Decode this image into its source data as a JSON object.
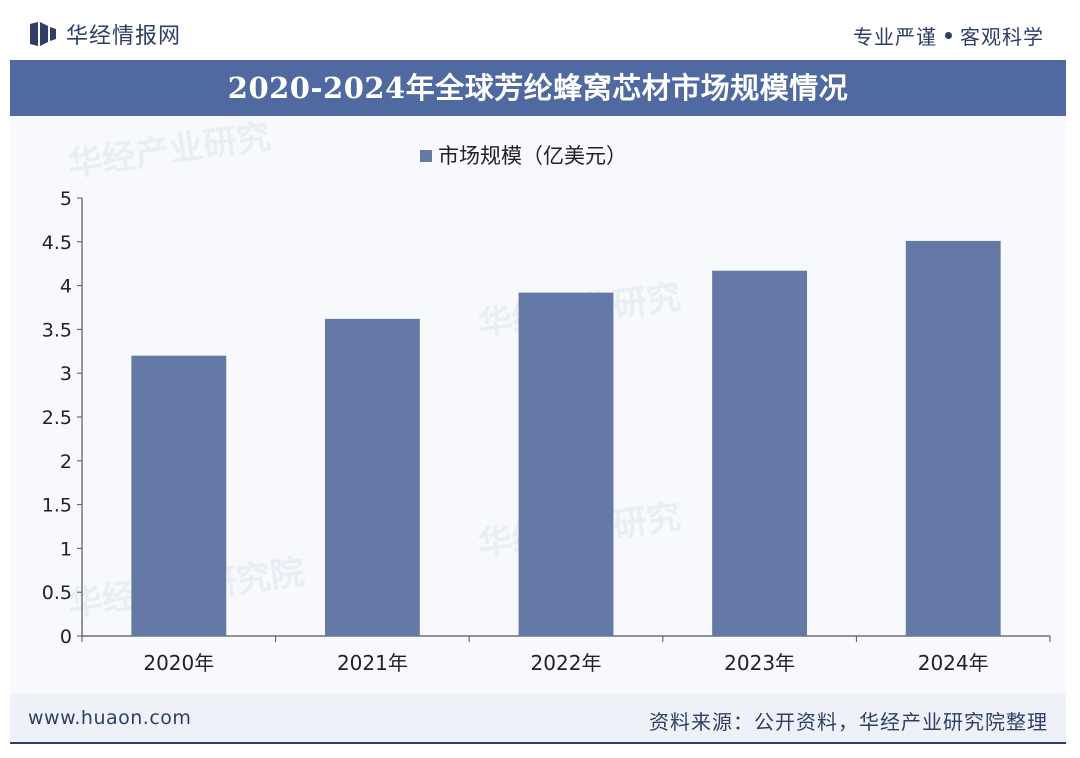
{
  "brand": {
    "name": "华经情报网",
    "logo_icon": "huajing-logo-icon"
  },
  "motto": {
    "left": "专业严谨",
    "right": "客观科学"
  },
  "title": "2020-2024年全球芳纶蜂窝芯材市场规模情况",
  "footer": {
    "url": "www.huaon.com",
    "source": "资料来源：公开资料，华经产业研究院整理"
  },
  "colors": {
    "bar": "#6479a6",
    "band": "#4f6aa0",
    "text": "#2f3e66"
  },
  "chart_data": {
    "type": "bar",
    "title": "",
    "legend": [
      "市场规模（亿美元）"
    ],
    "legend_position": "top-center",
    "categories": [
      "2020年",
      "2021年",
      "2022年",
      "2023年",
      "2024年"
    ],
    "series": [
      {
        "name": "市场规模（亿美元）",
        "values": [
          3.2,
          3.62,
          3.92,
          4.17,
          4.51
        ]
      }
    ],
    "xlabel": "",
    "ylabel": "",
    "ylim": [
      0,
      5
    ],
    "yticks": [
      "0",
      "0.5",
      "1",
      "1.5",
      "2",
      "2.5",
      "3",
      "3.5",
      "4",
      "4.5",
      "5"
    ],
    "grid": false
  }
}
